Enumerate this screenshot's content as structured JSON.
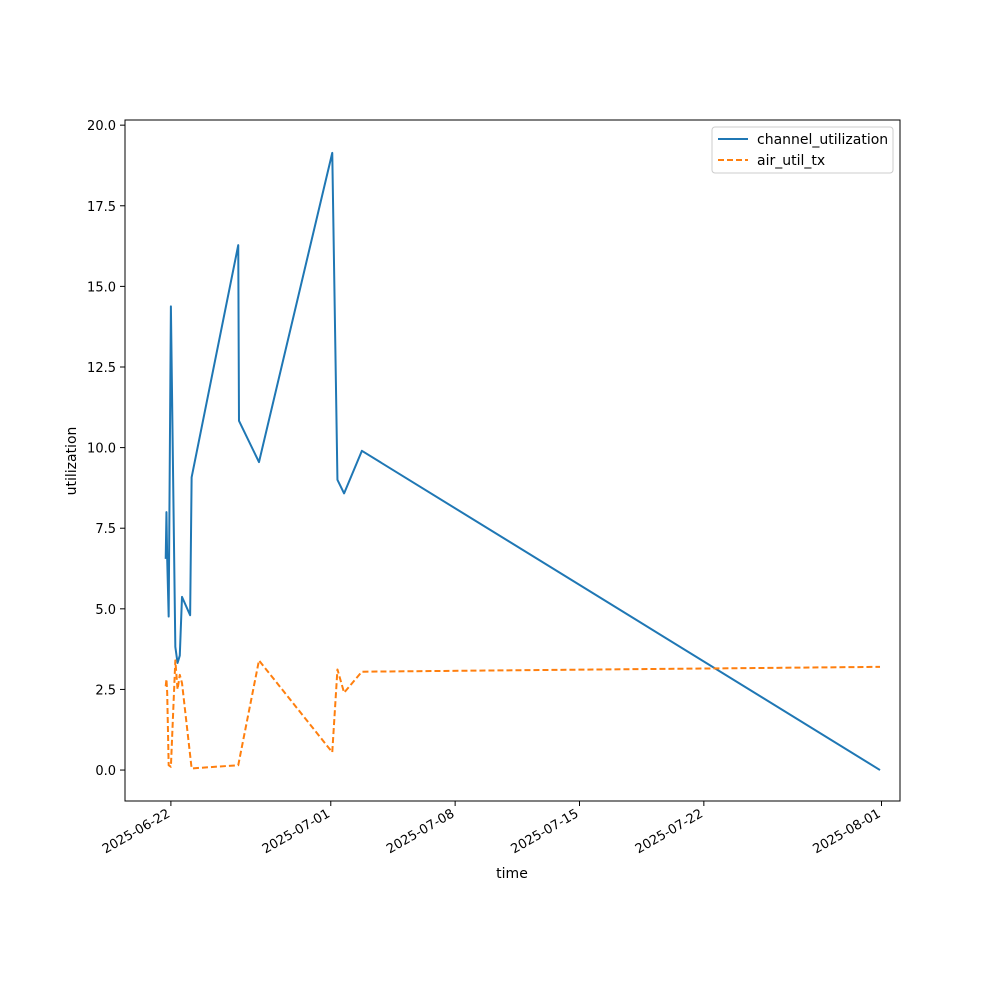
{
  "chart_data": {
    "type": "line",
    "title": "",
    "xlabel": "time",
    "ylabel": "utilization",
    "x_type": "date",
    "xlim": [
      "2025-06-19T10:00",
      "2025-08-02T01:00"
    ],
    "ylim": [
      -0.96,
      20.16
    ],
    "x_ticks": [
      "2025-06-22",
      "2025-07-01",
      "2025-07-08",
      "2025-07-15",
      "2025-07-22",
      "2025-08-01"
    ],
    "y_ticks": [
      0.0,
      2.5,
      5.0,
      7.5,
      10.0,
      12.5,
      15.0,
      17.5,
      20.0
    ],
    "y_tick_labels": [
      "0.0",
      "2.5",
      "5.0",
      "7.5",
      "10.0",
      "12.5",
      "15.0",
      "17.5",
      "20.0"
    ],
    "grid": false,
    "legend_position": "upper right",
    "series": [
      {
        "name": "channel_utilization",
        "color": "#1f77b4",
        "style": "solid",
        "points": [
          [
            "2025-06-21T17:00",
            6.55
          ],
          [
            "2025-06-21T18:00",
            8.0
          ],
          [
            "2025-06-21T19:00",
            6.55
          ],
          [
            "2025-06-21T21:00",
            4.76
          ],
          [
            "2025-06-22T00:00",
            14.38
          ],
          [
            "2025-06-22T06:00",
            3.82
          ],
          [
            "2025-06-22T09:00",
            3.32
          ],
          [
            "2025-06-22T12:00",
            3.55
          ],
          [
            "2025-06-22T15:00",
            5.37
          ],
          [
            "2025-06-23T02:00",
            4.8
          ],
          [
            "2025-06-23T04:00",
            9.08
          ],
          [
            "2025-06-25T19:00",
            16.28
          ],
          [
            "2025-06-25T20:00",
            10.83
          ],
          [
            "2025-06-26T23:00",
            9.55
          ],
          [
            "2025-07-01T02:00",
            19.14
          ],
          [
            "2025-07-01T09:00",
            9.0
          ],
          [
            "2025-07-01T18:00",
            8.58
          ],
          [
            "2025-07-02T18:00",
            9.9
          ],
          [
            "2025-07-31T22:00",
            0.0
          ]
        ]
      },
      {
        "name": "air_util_tx",
        "color": "#ff7f0e",
        "style": "dashed",
        "points": [
          [
            "2025-06-21T17:00",
            2.6
          ],
          [
            "2025-06-21T18:00",
            2.82
          ],
          [
            "2025-06-21T19:00",
            2.4
          ],
          [
            "2025-06-21T21:00",
            0.15
          ],
          [
            "2025-06-22T00:00",
            0.1
          ],
          [
            "2025-06-22T06:00",
            3.4
          ],
          [
            "2025-06-22T09:00",
            2.5
          ],
          [
            "2025-06-22T12:00",
            2.95
          ],
          [
            "2025-06-22T15:00",
            2.7
          ],
          [
            "2025-06-23T04:00",
            0.05
          ],
          [
            "2025-06-25T19:00",
            0.15
          ],
          [
            "2025-06-26T23:00",
            3.4
          ],
          [
            "2025-07-01T02:00",
            0.55
          ],
          [
            "2025-07-01T09:00",
            3.12
          ],
          [
            "2025-07-01T18:00",
            2.4
          ],
          [
            "2025-07-02T18:00",
            3.05
          ],
          [
            "2025-07-31T22:00",
            3.2
          ]
        ]
      }
    ]
  }
}
